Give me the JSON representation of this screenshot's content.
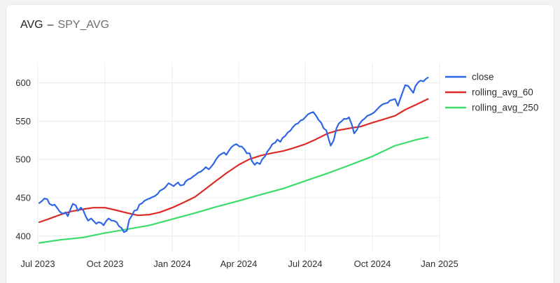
{
  "header": {
    "title": "AVG",
    "separator": "–",
    "subtitle": "SPY_AVG"
  },
  "colors": {
    "close": "#2f66e6",
    "rolling_avg_60": "#dc2a26",
    "rolling_avg_250": "#3ddc6a",
    "grid": "#ececef"
  },
  "chart_data": {
    "type": "line",
    "title": "",
    "xlabel": "",
    "ylabel": "",
    "grid": true,
    "legend_position": "right",
    "xlim": [
      "2023-07-01",
      "2025-01-01"
    ],
    "ylim": [
      387,
      617
    ],
    "x_ticks": [
      {
        "date": "2023-07-01",
        "label": "Jul 2023"
      },
      {
        "date": "2023-10-01",
        "label": "Oct 2023"
      },
      {
        "date": "2024-01-01",
        "label": "Jan 2024"
      },
      {
        "date": "2024-04-01",
        "label": "Apr 2024"
      },
      {
        "date": "2024-07-01",
        "label": "Jul 2024"
      },
      {
        "date": "2024-10-01",
        "label": "Oct 2024"
      },
      {
        "date": "2025-01-01",
        "label": "Jan 2025"
      }
    ],
    "y_ticks": [
      {
        "value": 400,
        "label": "400"
      },
      {
        "value": 450,
        "label": "450"
      },
      {
        "value": 500,
        "label": "500"
      },
      {
        "value": 550,
        "label": "550"
      },
      {
        "value": 600,
        "label": "600"
      }
    ],
    "series": [
      {
        "name": "close",
        "color": "#2f66e6",
        "points": [
          [
            "2023-07-03",
            443
          ],
          [
            "2023-07-07",
            446
          ],
          [
            "2023-07-10",
            449
          ],
          [
            "2023-07-14",
            448
          ],
          [
            "2023-07-17",
            442
          ],
          [
            "2023-07-21",
            440
          ],
          [
            "2023-07-24",
            441
          ],
          [
            "2023-07-28",
            436
          ],
          [
            "2023-07-31",
            432
          ],
          [
            "2023-08-04",
            429
          ],
          [
            "2023-08-08",
            431
          ],
          [
            "2023-08-11",
            426
          ],
          [
            "2023-08-16",
            438
          ],
          [
            "2023-08-18",
            442
          ],
          [
            "2023-08-22",
            440
          ],
          [
            "2023-08-25",
            433
          ],
          [
            "2023-08-29",
            437
          ],
          [
            "2023-09-01",
            434
          ],
          [
            "2023-09-05",
            425
          ],
          [
            "2023-09-08",
            420
          ],
          [
            "2023-09-12",
            423
          ],
          [
            "2023-09-15",
            420
          ],
          [
            "2023-09-19",
            416
          ],
          [
            "2023-09-22",
            418
          ],
          [
            "2023-09-26",
            417
          ],
          [
            "2023-09-29",
            414
          ],
          [
            "2023-10-03",
            420
          ],
          [
            "2023-10-06",
            423
          ],
          [
            "2023-10-10",
            420
          ],
          [
            "2023-10-13",
            420
          ],
          [
            "2023-10-17",
            418
          ],
          [
            "2023-10-20",
            413
          ],
          [
            "2023-10-24",
            410
          ],
          [
            "2023-10-27",
            405
          ],
          [
            "2023-10-31",
            407
          ],
          [
            "2023-11-03",
            421
          ],
          [
            "2023-11-07",
            427
          ],
          [
            "2023-11-10",
            433
          ],
          [
            "2023-11-14",
            434
          ],
          [
            "2023-11-17",
            441
          ],
          [
            "2023-11-21",
            443
          ],
          [
            "2023-11-24",
            446
          ],
          [
            "2023-11-28",
            448
          ],
          [
            "2023-12-01",
            449
          ],
          [
            "2023-12-05",
            451
          ],
          [
            "2023-12-08",
            452
          ],
          [
            "2023-12-12",
            455
          ],
          [
            "2023-12-15",
            459
          ],
          [
            "2023-12-19",
            461
          ],
          [
            "2023-12-22",
            463
          ],
          [
            "2023-12-27",
            469
          ],
          [
            "2023-12-29",
            468
          ],
          [
            "2024-01-03",
            465
          ],
          [
            "2024-01-05",
            467
          ],
          [
            "2024-01-09",
            470
          ],
          [
            "2024-01-12",
            466
          ],
          [
            "2024-01-17",
            467
          ],
          [
            "2024-01-19",
            471
          ],
          [
            "2024-01-23",
            474
          ],
          [
            "2024-01-26",
            475
          ],
          [
            "2024-01-30",
            478
          ],
          [
            "2024-02-02",
            480
          ],
          [
            "2024-02-06",
            483
          ],
          [
            "2024-02-09",
            484
          ],
          [
            "2024-02-13",
            487
          ],
          [
            "2024-02-16",
            490
          ],
          [
            "2024-02-20",
            487
          ],
          [
            "2024-02-23",
            490
          ],
          [
            "2024-02-27",
            495
          ],
          [
            "2024-03-01",
            500
          ],
          [
            "2024-03-05",
            505
          ],
          [
            "2024-03-08",
            507
          ],
          [
            "2024-03-12",
            509
          ],
          [
            "2024-03-15",
            506
          ],
          [
            "2024-03-19",
            512
          ],
          [
            "2024-03-22",
            516
          ],
          [
            "2024-03-26",
            519
          ],
          [
            "2024-03-29",
            520
          ],
          [
            "2024-04-02",
            517
          ],
          [
            "2024-04-05",
            517
          ],
          [
            "2024-04-09",
            513
          ],
          [
            "2024-04-12",
            508
          ],
          [
            "2024-04-16",
            508
          ],
          [
            "2024-04-19",
            498
          ],
          [
            "2024-04-23",
            493
          ],
          [
            "2024-04-26",
            496
          ],
          [
            "2024-04-30",
            494
          ],
          [
            "2024-05-03",
            500
          ],
          [
            "2024-05-07",
            504
          ],
          [
            "2024-05-10",
            510
          ],
          [
            "2024-05-14",
            515
          ],
          [
            "2024-05-17",
            520
          ],
          [
            "2024-05-21",
            522
          ],
          [
            "2024-05-24",
            526
          ],
          [
            "2024-05-28",
            523
          ],
          [
            "2024-05-31",
            528
          ],
          [
            "2024-06-04",
            531
          ],
          [
            "2024-06-07",
            535
          ],
          [
            "2024-06-11",
            538
          ],
          [
            "2024-06-14",
            542
          ],
          [
            "2024-06-18",
            546
          ],
          [
            "2024-06-21",
            547
          ],
          [
            "2024-06-25",
            551
          ],
          [
            "2024-06-28",
            552
          ],
          [
            "2024-07-02",
            556
          ],
          [
            "2024-07-05",
            559
          ],
          [
            "2024-07-09",
            561
          ],
          [
            "2024-07-12",
            562
          ],
          [
            "2024-07-16",
            557
          ],
          [
            "2024-07-19",
            552
          ],
          [
            "2024-07-23",
            548
          ],
          [
            "2024-07-26",
            541
          ],
          [
            "2024-07-30",
            538
          ],
          [
            "2024-08-02",
            527
          ],
          [
            "2024-08-05",
            518
          ],
          [
            "2024-08-09",
            525
          ],
          [
            "2024-08-13",
            541
          ],
          [
            "2024-08-16",
            547
          ],
          [
            "2024-08-20",
            550
          ],
          [
            "2024-08-23",
            553
          ],
          [
            "2024-08-27",
            553
          ],
          [
            "2024-08-30",
            555
          ],
          [
            "2024-09-03",
            545
          ],
          [
            "2024-09-06",
            534
          ],
          [
            "2024-09-10",
            539
          ],
          [
            "2024-09-13",
            546
          ],
          [
            "2024-09-17",
            551
          ],
          [
            "2024-09-20",
            553
          ],
          [
            "2024-09-24",
            557
          ],
          [
            "2024-09-27",
            558
          ],
          [
            "2024-10-01",
            560
          ],
          [
            "2024-10-04",
            562
          ],
          [
            "2024-10-08",
            566
          ],
          [
            "2024-10-11",
            569
          ],
          [
            "2024-10-15",
            572
          ],
          [
            "2024-10-18",
            573
          ],
          [
            "2024-10-22",
            574
          ],
          [
            "2024-10-25",
            577
          ],
          [
            "2024-10-29",
            578
          ],
          [
            "2024-11-01",
            579
          ],
          [
            "2024-11-05",
            570
          ],
          [
            "2024-11-07",
            576
          ],
          [
            "2024-11-11",
            587
          ],
          [
            "2024-11-15",
            597
          ],
          [
            "2024-11-19",
            596
          ],
          [
            "2024-11-22",
            592
          ],
          [
            "2024-11-26",
            587
          ],
          [
            "2024-11-29",
            596
          ],
          [
            "2024-12-03",
            601
          ],
          [
            "2024-12-06",
            603
          ],
          [
            "2024-12-10",
            602
          ],
          [
            "2024-12-13",
            605
          ],
          [
            "2024-12-16",
            607
          ]
        ]
      },
      {
        "name": "rolling_avg_60",
        "color": "#dc2a26",
        "points": [
          [
            "2023-07-03",
            418
          ],
          [
            "2023-07-15",
            422
          ],
          [
            "2023-08-01",
            428
          ],
          [
            "2023-08-15",
            432
          ],
          [
            "2023-09-01",
            435
          ],
          [
            "2023-09-15",
            437
          ],
          [
            "2023-10-01",
            437
          ],
          [
            "2023-10-15",
            434
          ],
          [
            "2023-11-01",
            430
          ],
          [
            "2023-11-15",
            427
          ],
          [
            "2023-12-01",
            428
          ],
          [
            "2023-12-15",
            431
          ],
          [
            "2024-01-01",
            437
          ],
          [
            "2024-01-15",
            443
          ],
          [
            "2024-02-01",
            451
          ],
          [
            "2024-02-15",
            461
          ],
          [
            "2024-03-01",
            472
          ],
          [
            "2024-03-15",
            482
          ],
          [
            "2024-04-01",
            493
          ],
          [
            "2024-04-15",
            500
          ],
          [
            "2024-05-01",
            505
          ],
          [
            "2024-05-15",
            508
          ],
          [
            "2024-06-01",
            511
          ],
          [
            "2024-06-15",
            515
          ],
          [
            "2024-07-01",
            520
          ],
          [
            "2024-07-15",
            526
          ],
          [
            "2024-08-01",
            534
          ],
          [
            "2024-08-15",
            538
          ],
          [
            "2024-09-01",
            541
          ],
          [
            "2024-09-15",
            543
          ],
          [
            "2024-10-01",
            548
          ],
          [
            "2024-10-15",
            552
          ],
          [
            "2024-11-01",
            557
          ],
          [
            "2024-11-15",
            565
          ],
          [
            "2024-12-01",
            572
          ],
          [
            "2024-12-16",
            579
          ]
        ]
      },
      {
        "name": "rolling_avg_250",
        "color": "#3ddc6a",
        "points": [
          [
            "2023-07-03",
            391
          ],
          [
            "2023-08-01",
            395
          ],
          [
            "2023-09-01",
            398
          ],
          [
            "2023-10-01",
            404
          ],
          [
            "2023-11-01",
            409
          ],
          [
            "2023-12-01",
            414
          ],
          [
            "2024-01-01",
            422
          ],
          [
            "2024-02-01",
            430
          ],
          [
            "2024-03-01",
            438
          ],
          [
            "2024-04-01",
            446
          ],
          [
            "2024-05-01",
            454
          ],
          [
            "2024-06-01",
            462
          ],
          [
            "2024-07-01",
            472
          ],
          [
            "2024-08-01",
            482
          ],
          [
            "2024-09-01",
            493
          ],
          [
            "2024-10-01",
            504
          ],
          [
            "2024-11-01",
            518
          ],
          [
            "2024-12-01",
            526
          ],
          [
            "2024-12-16",
            529
          ]
        ]
      }
    ]
  }
}
